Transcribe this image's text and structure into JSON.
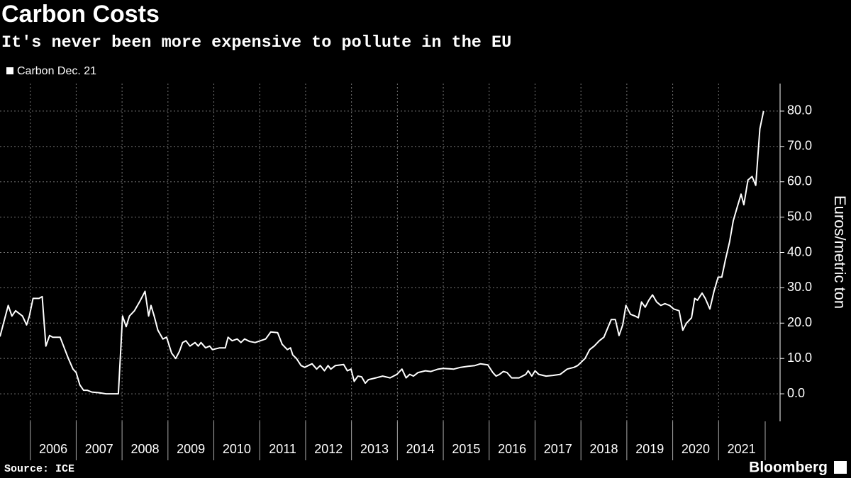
{
  "chart_data": {
    "type": "line",
    "title": "Carbon Costs",
    "subtitle": "It's never been more expensive to pollute in the EU",
    "y_axis_label": "Euros/metric ton",
    "source": "Source: ICE",
    "brand": "Bloomberg",
    "legend": "top-left",
    "grid": true,
    "x": [
      2005.34,
      2005.52,
      2005.6,
      2005.68,
      2005.83,
      2005.92,
      2005.98,
      2006.06,
      2006.19,
      2006.26,
      2006.34,
      2006.42,
      2006.49,
      2006.65,
      2006.77,
      2006.83,
      2006.93,
      2007.0,
      2007.08,
      2007.16,
      2007.24,
      2007.34,
      2007.5,
      2007.65,
      2007.92,
      2008.01,
      2008.09,
      2008.16,
      2008.27,
      2008.38,
      2008.5,
      2008.58,
      2008.63,
      2008.7,
      2008.78,
      2008.89,
      2008.97,
      2009.08,
      2009.17,
      2009.25,
      2009.32,
      2009.39,
      2009.48,
      2009.59,
      2009.66,
      2009.72,
      2009.82,
      2009.91,
      2009.97,
      2010.13,
      2010.25,
      2010.31,
      2010.4,
      2010.51,
      2010.59,
      2010.67,
      2010.78,
      2010.9,
      2011.13,
      2011.24,
      2011.39,
      2011.49,
      2011.6,
      2011.67,
      2011.72,
      2011.8,
      2011.9,
      2011.98,
      2012.14,
      2012.24,
      2012.32,
      2012.41,
      2012.49,
      2012.55,
      2012.65,
      2012.83,
      2012.91,
      2012.99,
      2013.06,
      2013.14,
      2013.22,
      2013.3,
      2013.37,
      2013.53,
      2013.68,
      2013.84,
      2013.99,
      2014.1,
      2014.19,
      2014.27,
      2014.35,
      2014.45,
      2014.61,
      2014.73,
      2014.89,
      2015.0,
      2015.23,
      2015.38,
      2015.54,
      2015.69,
      2015.81,
      2015.97,
      2016.08,
      2016.15,
      2016.23,
      2016.31,
      2016.39,
      2016.49,
      2016.65,
      2016.8,
      2016.85,
      2016.93,
      2017.0,
      2017.08,
      2017.24,
      2017.39,
      2017.55,
      2017.7,
      2017.85,
      2017.93,
      2018.01,
      2018.09,
      2018.19,
      2018.29,
      2018.4,
      2018.5,
      2018.66,
      2018.75,
      2018.83,
      2018.91,
      2018.98,
      2019.08,
      2019.18,
      2019.25,
      2019.32,
      2019.4,
      2019.48,
      2019.56,
      2019.65,
      2019.74,
      2019.83,
      2019.93,
      2020.02,
      2020.14,
      2020.22,
      2020.3,
      2020.41,
      2020.48,
      2020.54,
      2020.64,
      2020.71,
      2020.81,
      2020.9,
      2020.99,
      2021.07,
      2021.15,
      2021.24,
      2021.32,
      2021.41,
      2021.49,
      2021.55,
      2021.64,
      2021.73,
      2021.81,
      2021.9,
      2021.98
    ],
    "series": [
      {
        "name": "Carbon Dec. 21",
        "color": "#ffffff",
        "values": [
          16.2,
          25,
          22,
          23.5,
          22,
          19.5,
          22,
          27,
          27,
          27.5,
          13.5,
          16.5,
          16,
          16,
          12,
          10,
          7,
          6,
          2.5,
          1,
          1,
          0.5,
          0.3,
          0,
          0,
          22,
          19,
          22,
          23.5,
          26,
          29,
          22,
          25,
          22,
          18,
          15.5,
          16,
          11.5,
          10,
          12,
          14.5,
          15,
          13.5,
          14.5,
          13.5,
          14.5,
          13,
          13.5,
          12.5,
          13,
          13,
          16,
          15,
          15.5,
          14.5,
          15.5,
          14.8,
          14.5,
          15.5,
          17.5,
          17.3,
          14,
          12.5,
          13,
          11,
          10,
          8,
          7.5,
          8.5,
          7,
          8,
          6.5,
          8,
          7,
          8,
          8.3,
          6.5,
          7,
          3.5,
          5,
          4.8,
          3,
          4,
          4.5,
          5,
          4.5,
          5.5,
          7,
          4.5,
          5.5,
          5,
          6,
          6.5,
          6.3,
          7,
          7.2,
          7,
          7.5,
          7.8,
          8,
          8.5,
          8.2,
          6,
          5,
          5.5,
          6.3,
          6,
          4.5,
          4.5,
          5.5,
          6.5,
          5,
          6.5,
          5.5,
          5,
          5.2,
          5.5,
          7,
          7.5,
          8,
          9,
          10,
          12.5,
          13.5,
          15,
          16,
          21,
          21,
          16.5,
          19.5,
          25,
          22.5,
          22,
          21.5,
          26,
          24.5,
          26.5,
          28,
          26,
          25,
          25.5,
          25,
          24,
          23.5,
          18,
          20,
          21.5,
          27,
          26.5,
          28.5,
          27,
          24,
          29,
          33,
          33,
          38,
          43,
          49,
          53,
          56.5,
          53.5,
          60.5,
          61.5,
          59,
          75,
          80
        ]
      }
    ],
    "xlim": [
      2005.34,
      2022.34
    ],
    "xticks": [
      2006,
      2007,
      2008,
      2009,
      2010,
      2011,
      2012,
      2013,
      2014,
      2015,
      2016,
      2017,
      2018,
      2019,
      2020,
      2021
    ],
    "ylim": [
      -7.8,
      87.8
    ],
    "yticks": [
      {
        "value": 0,
        "label": "0.0"
      },
      {
        "value": 10,
        "label": "10.0"
      },
      {
        "value": 20,
        "label": "20.0"
      },
      {
        "value": 30,
        "label": "30.0"
      },
      {
        "value": 40,
        "label": "40.0"
      },
      {
        "value": 50,
        "label": "50.0"
      },
      {
        "value": 60,
        "label": "60.0"
      },
      {
        "value": 70,
        "label": "70.0"
      },
      {
        "value": 80,
        "label": "80.0"
      }
    ]
  }
}
